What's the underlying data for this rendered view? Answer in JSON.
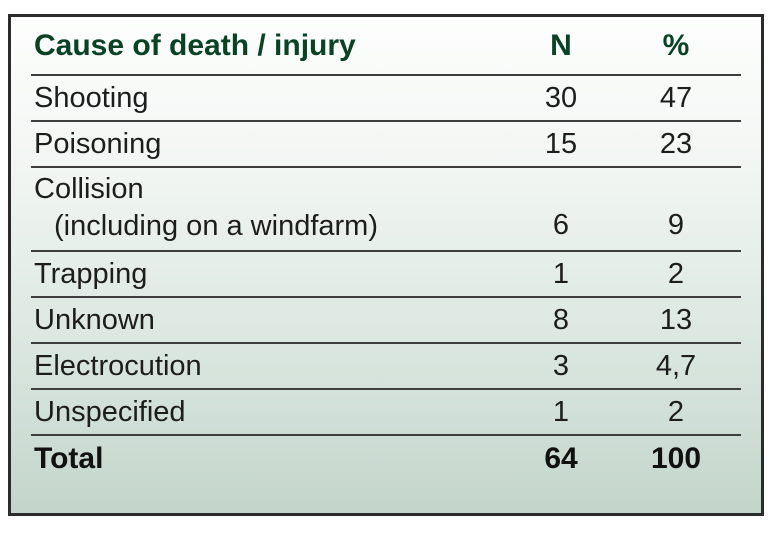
{
  "chart_data": {
    "type": "table",
    "columns": [
      "Cause of death / injury",
      "N",
      "%"
    ],
    "rows": [
      [
        "Shooting",
        30,
        47
      ],
      [
        "Poisoning",
        15,
        23
      ],
      [
        "Collision (including on a windfarm)",
        6,
        9
      ],
      [
        "Trapping",
        1,
        2
      ],
      [
        "Unknown",
        8,
        13
      ],
      [
        "Electrocution",
        3,
        "4,7"
      ],
      [
        "Unspecified",
        1,
        2
      ],
      [
        "Total",
        64,
        100
      ]
    ],
    "notes": "decimal comma used in 4,7; Total row bold; header dark green"
  },
  "table": {
    "columns": {
      "cause": "Cause of death / injury",
      "n": "N",
      "pct": "%"
    },
    "rows": [
      {
        "cause": "Shooting",
        "n": "30",
        "pct": "47"
      },
      {
        "cause": "Poisoning",
        "n": "15",
        "pct": "23"
      },
      {
        "cause": "Collision",
        "cause2": "(including on a windfarm)",
        "n": "6",
        "pct": "9"
      },
      {
        "cause": "Trapping",
        "n": "1",
        "pct": "2"
      },
      {
        "cause": "Unknown",
        "n": "8",
        "pct": "13"
      },
      {
        "cause": "Electrocution",
        "n": "3",
        "pct": "4,7"
      },
      {
        "cause": "Unspecified",
        "n": "1",
        "pct": "2"
      }
    ],
    "total": {
      "label": "Total",
      "n": "64",
      "pct": "100"
    },
    "colors": {
      "header_text": "#0a4224",
      "body_text": "#1d1d1d",
      "outer_border": "#2b2b2b",
      "row_line": "#3d3d3d",
      "background_top": "#fdfefd",
      "background_bottom": "#c3d5cb"
    }
  }
}
